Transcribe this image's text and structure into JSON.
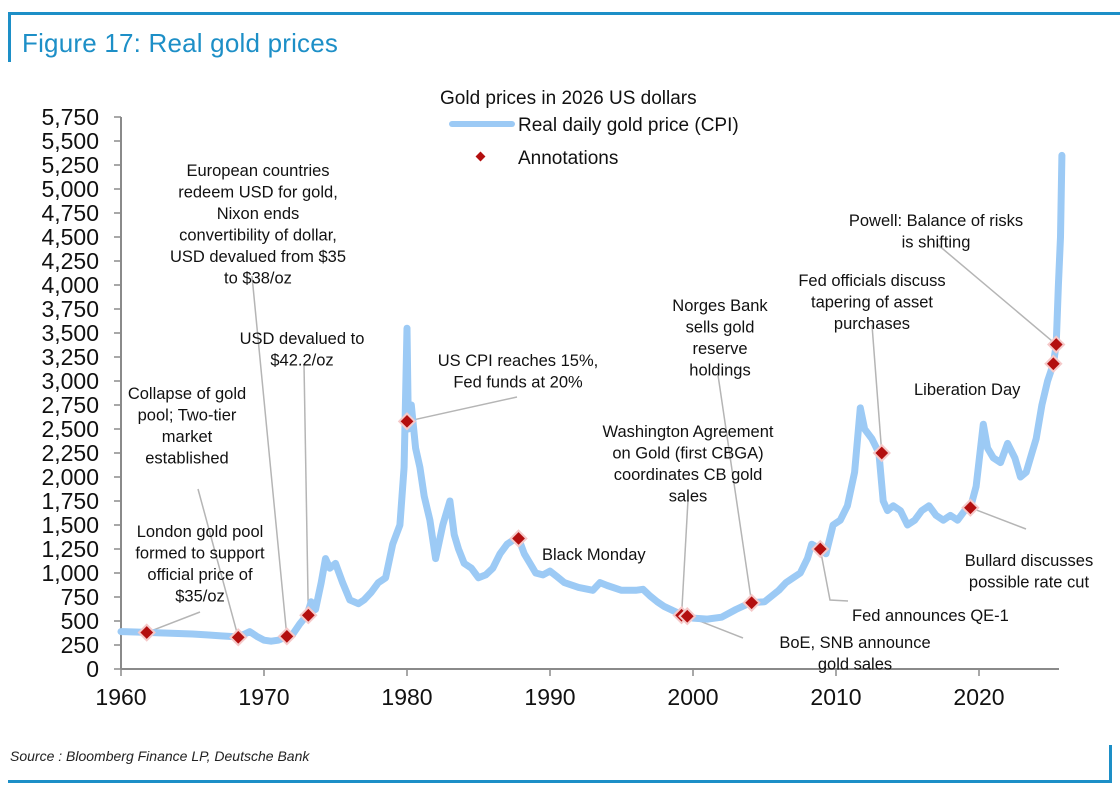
{
  "header": {
    "title": "Figure 17: Real gold prices"
  },
  "footer": {
    "source": "Source : Bloomberg Finance LP, Deutsche Bank"
  },
  "colors": {
    "brand": "#1d8fc7",
    "series": "#9ccaf5",
    "marker": "#b30f0f",
    "leader": "#b5b5b5"
  },
  "chart_data": {
    "type": "line",
    "title": "Gold prices in 2026 US dollars",
    "xlabel": "",
    "ylabel": "",
    "xlim": [
      1960,
      2025.8
    ],
    "ylim": [
      0,
      5750
    ],
    "grid": false,
    "legend_position": "top-center",
    "x_ticks": [
      1960,
      1970,
      1980,
      1990,
      2000,
      2010,
      2020
    ],
    "x_tick_labels": [
      "1960",
      "1970",
      "1980",
      "1990",
      "2000",
      "2010",
      "2020"
    ],
    "y_ticks": [
      0,
      250,
      500,
      750,
      1000,
      1250,
      1500,
      1750,
      2000,
      2250,
      2500,
      2750,
      3000,
      3250,
      3500,
      3750,
      4000,
      4250,
      4500,
      4750,
      5000,
      5250,
      5500,
      5750
    ],
    "y_tick_labels": [
      "0",
      "250",
      "500",
      "750",
      "1,000",
      "1,250",
      "1,500",
      "1,750",
      "2,000",
      "2,250",
      "2,500",
      "2,750",
      "3,000",
      "3,250",
      "3,500",
      "3,750",
      "4,000",
      "4,250",
      "4,500",
      "4,750",
      "5,000",
      "5,250",
      "5,500",
      "5,750"
    ],
    "legend": [
      {
        "name": "Real daily gold price (CPI)",
        "kind": "line"
      },
      {
        "name": "Annotations",
        "kind": "marker"
      }
    ],
    "series": [
      {
        "name": "Real daily gold price (CPI)",
        "x": [
          1960,
          1961,
          1962,
          1963,
          1964,
          1965,
          1966,
          1967,
          1968,
          1968.6,
          1969,
          1969.5,
          1970,
          1970.5,
          1971,
          1971.6,
          1972,
          1972.5,
          1973,
          1973.3,
          1973.6,
          1974,
          1974.3,
          1974.6,
          1975,
          1975.5,
          1976,
          1976.6,
          1977,
          1977.5,
          1978,
          1978.5,
          1979,
          1979.5,
          1979.8,
          1980.0,
          1980.1,
          1980.3,
          1980.6,
          1980.9,
          1981.2,
          1981.6,
          1982,
          1982.5,
          1983,
          1983.3,
          1983.6,
          1984,
          1984.5,
          1985,
          1985.5,
          1986,
          1986.5,
          1987,
          1987.5,
          1987.8,
          1988.2,
          1988.6,
          1989,
          1989.5,
          1990,
          1990.5,
          1991,
          1992,
          1993,
          1993.5,
          1994,
          1995,
          1996,
          1996.5,
          1997,
          1997.5,
          1998,
          1999,
          1999.5,
          2000,
          2001,
          2002,
          2003,
          2004,
          2005,
          2006,
          2006.5,
          2007,
          2007.5,
          2008,
          2008.3,
          2008.9,
          2009.3,
          2009.8,
          2010.3,
          2010.8,
          2011.3,
          2011.7,
          2012,
          2012.5,
          2013,
          2013.3,
          2013.6,
          2014,
          2014.5,
          2015,
          2015.5,
          2016,
          2016.5,
          2017,
          2017.5,
          2018,
          2018.5,
          2019,
          2019.4,
          2019.8,
          2020.3,
          2020.6,
          2021,
          2021.5,
          2022,
          2022.5,
          2022.9,
          2023.3,
          2023.7,
          2024,
          2024.4,
          2024.8,
          2025.2,
          2025.4,
          2025.55,
          2025.7,
          2025.8
        ],
        "y": [
          390,
          385,
          380,
          375,
          370,
          365,
          355,
          345,
          335,
          360,
          390,
          340,
          300,
          290,
          300,
          340,
          360,
          470,
          560,
          700,
          620,
          900,
          1150,
          1050,
          1100,
          900,
          720,
          680,
          720,
          800,
          900,
          950,
          1300,
          1500,
          2100,
          3550,
          2500,
          2750,
          2300,
          2100,
          1800,
          1550,
          1150,
          1500,
          1750,
          1400,
          1250,
          1100,
          1050,
          950,
          980,
          1050,
          1200,
          1300,
          1350,
          1360,
          1200,
          1100,
          1000,
          980,
          1020,
          960,
          900,
          850,
          820,
          900,
          870,
          820,
          820,
          830,
          760,
          700,
          650,
          580,
          560,
          530,
          520,
          540,
          620,
          690,
          700,
          820,
          900,
          950,
          1000,
          1150,
          1300,
          1250,
          1200,
          1500,
          1550,
          1700,
          2050,
          2720,
          2500,
          2400,
          2250,
          1750,
          1650,
          1700,
          1650,
          1500,
          1550,
          1650,
          1700,
          1600,
          1550,
          1600,
          1550,
          1650,
          1680,
          1900,
          2550,
          2300,
          2200,
          2150,
          2350,
          2200,
          2000,
          2050,
          2250,
          2400,
          2750,
          3000,
          3180,
          3380,
          4000,
          4500,
          5350
        ]
      }
    ],
    "annotations": [
      {
        "label": "London gold pool formed to support official price of $35/oz",
        "x": 1961.8,
        "y": 380
      },
      {
        "label": "Collapse of gold pool; Two-tier market established",
        "x": 1968.2,
        "y": 330
      },
      {
        "label": "European countries redeem USD for gold, Nixon ends convertibility of dollar, USD devalued from $35 to $38/oz",
        "x": 1971.6,
        "y": 340
      },
      {
        "label": "USD devalued to $42.2/oz",
        "x": 1973.1,
        "y": 560
      },
      {
        "label": "US CPI reaches 15%, Fed funds at 20%",
        "x": 1980.0,
        "y": 2580
      },
      {
        "label": "Black Monday",
        "x": 1987.8,
        "y": 1360
      },
      {
        "label": "Washington Agreement on Gold (first CBGA) coordinates CB gold sales",
        "x": 1999.2,
        "y": 560
      },
      {
        "label": "BoE, SNB announce gold sales",
        "x": 1999.6,
        "y": 550
      },
      {
        "label": "Norges Bank sells gold reserve holdings",
        "x": 2004.1,
        "y": 690
      },
      {
        "label": "Fed announces QE-1",
        "x": 2008.9,
        "y": 1250
      },
      {
        "label": "Fed officials discuss tapering of asset purchases",
        "x": 2013.2,
        "y": 2250
      },
      {
        "label": "Bullard discusses possible rate cut",
        "x": 2019.4,
        "y": 1680
      },
      {
        "label": "Liberation Day",
        "x": 2025.2,
        "y": 3180
      },
      {
        "label": "Powell: Balance of risks is shifting",
        "x": 2025.4,
        "y": 3380
      }
    ],
    "annotation_text_lines": [
      [
        "London gold pool",
        "formed to support",
        "official price of",
        "$35/oz"
      ],
      [
        "Collapse of gold",
        "pool; Two-tier",
        "market",
        "established"
      ],
      [
        "European countries",
        "redeem USD for gold,",
        "Nixon ends",
        "convertibility of dollar,",
        "USD devalued from $35",
        "to $38/oz"
      ],
      [
        "USD devalued to",
        "$42.2/oz"
      ],
      [
        "US CPI reaches 15%,",
        "Fed funds at 20%"
      ],
      [
        "Black Monday"
      ],
      [
        "Washington Agreement",
        "on Gold (first CBGA)",
        "coordinates CB gold",
        "sales"
      ],
      [
        "BoE, SNB announce",
        "gold sales"
      ],
      [
        "Norges Bank",
        "sells gold",
        "reserve",
        "holdings"
      ],
      [
        "Fed announces QE-1"
      ],
      [
        "Fed officials discuss",
        "tapering of asset",
        "purchases"
      ],
      [
        "Bullard discusses",
        "possible rate cut"
      ],
      [
        "Liberation Day"
      ],
      [
        "Powell: Balance of risks",
        "is shifting"
      ]
    ]
  }
}
